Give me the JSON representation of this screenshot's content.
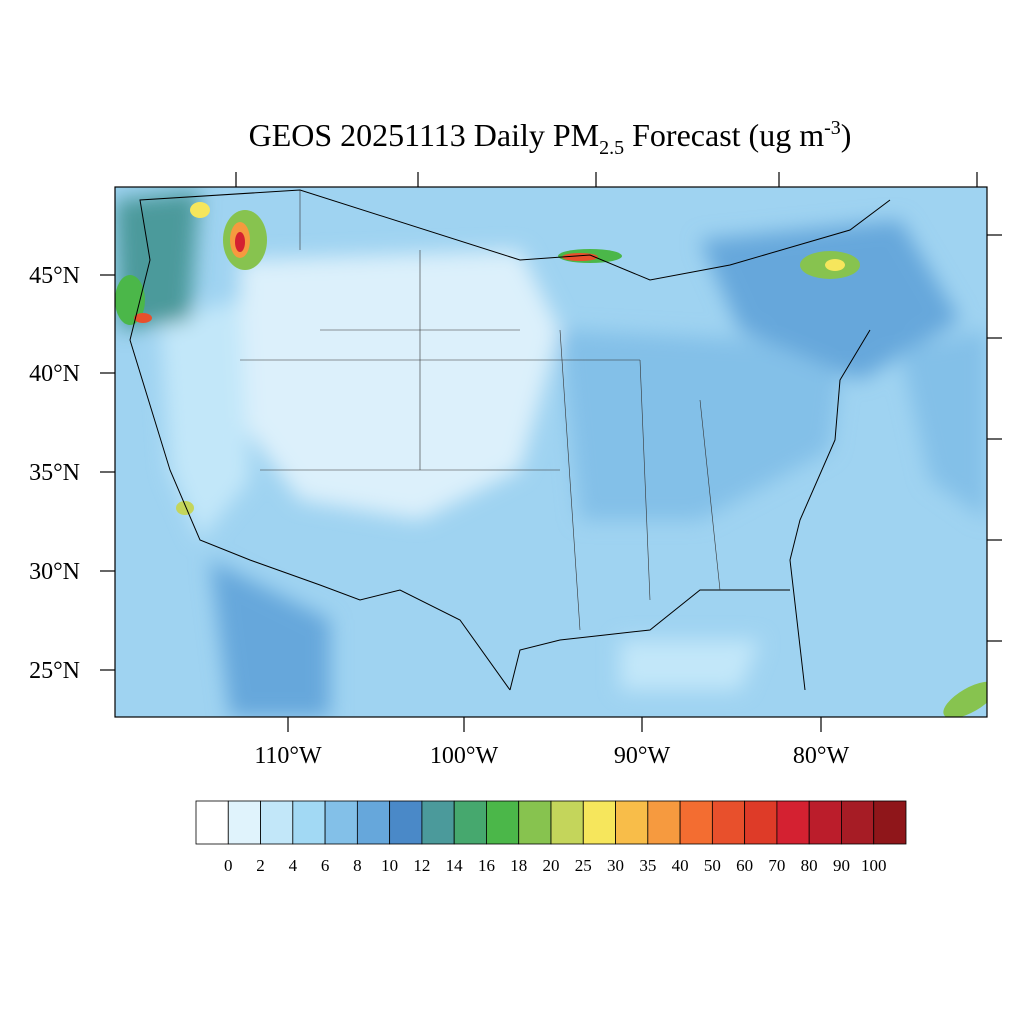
{
  "title": {
    "prefix": "GEOS 20251113 Daily PM",
    "sub": "2.5",
    "middle": " Forecast (ug m",
    "sup": "-3",
    "suffix": ")"
  },
  "lat_labels": [
    "45°N",
    "40°N",
    "35°N",
    "30°N",
    "25°N"
  ],
  "lon_labels": [
    "110°W",
    "100°W",
    "90°W",
    "80°W"
  ],
  "colorbar": {
    "labels": [
      "0",
      "2",
      "4",
      "6",
      "8",
      "10",
      "12",
      "14",
      "16",
      "18",
      "20",
      "25",
      "30",
      "35",
      "40",
      "50",
      "60",
      "70",
      "80",
      "90",
      "100"
    ],
    "colors": [
      "#ffffff",
      "#e0f3fc",
      "#c2e7f9",
      "#a2d9f4",
      "#83c0e8",
      "#66a7db",
      "#4a89c8",
      "#4b9a9b",
      "#46a86e",
      "#4bb749",
      "#87c34f",
      "#c4d55b",
      "#f6e65c",
      "#f8bd49",
      "#f69a3f",
      "#f36d31",
      "#e8502c",
      "#de3b28",
      "#d42131",
      "#bb1d2b",
      "#a61c25",
      "#8f161a"
    ]
  }
}
